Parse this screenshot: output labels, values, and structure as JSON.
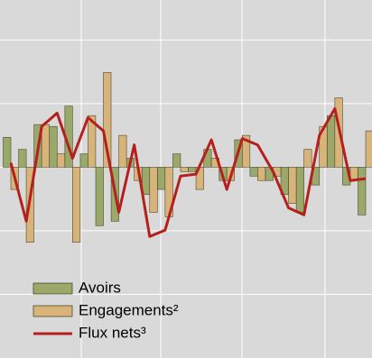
{
  "chart_data": {
    "type": "bar",
    "series": [
      {
        "name": "Avoirs",
        "type": "bar",
        "color": "#9aa86a",
        "values": [
          0.47,
          0.28,
          0.67,
          0.64,
          0.96,
          0.21,
          -0.92,
          -0.85,
          0.14,
          -0.43,
          -0.35,
          0.21,
          -0.07,
          0.28,
          -0.21,
          0.43,
          -0.14,
          -0.21,
          -0.43,
          -0.71,
          -0.28,
          0.81,
          -0.28,
          -0.75
        ]
      },
      {
        "name": "Engagements²",
        "type": "bar",
        "color": "#d8b47a",
        "values": [
          -0.35,
          -1.18,
          0.67,
          0.21,
          -1.18,
          0.81,
          1.49,
          0.5,
          -0.21,
          -0.71,
          -0.78,
          -0.07,
          -0.35,
          0.14,
          -0.21,
          0.5,
          -0.21,
          -0.14,
          -0.57,
          0.28,
          0.64,
          1.09,
          -0.21,
          0.57
        ]
      },
      {
        "name": "Flux nets³",
        "type": "line",
        "color": "#b5201c",
        "values": [
          0.07,
          -0.85,
          0.64,
          0.85,
          0.14,
          0.78,
          0.57,
          -0.71,
          0.35,
          -1.09,
          -0.99,
          -0.14,
          -0.11,
          0.43,
          -0.35,
          0.45,
          0.35,
          -0.07,
          -0.64,
          -0.75,
          0.5,
          0.92,
          -0.21,
          -0.18
        ]
      }
    ],
    "ylim": [
      -3,
      2.6
    ],
    "yticks": [
      -2,
      -1,
      0,
      1,
      2
    ],
    "grid": true
  }
}
